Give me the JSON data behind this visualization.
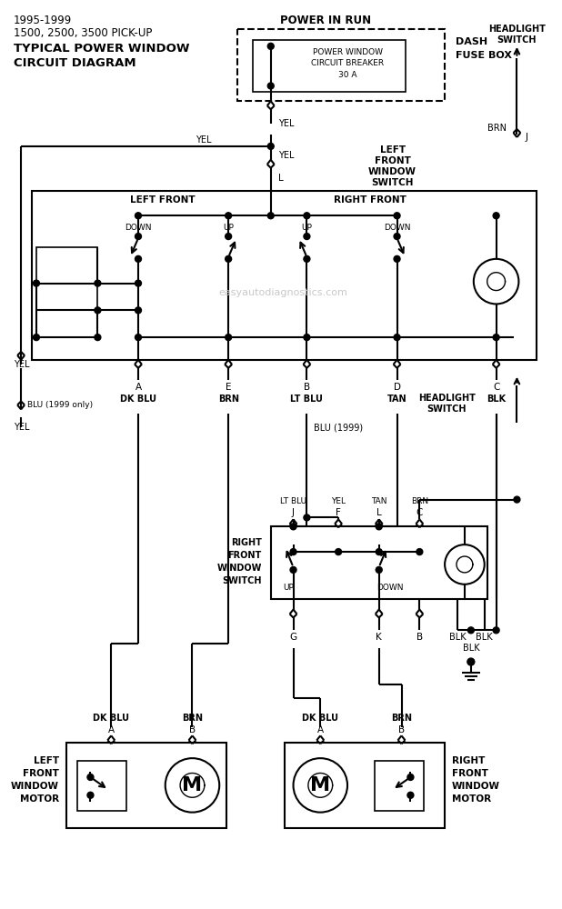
{
  "title_lines": [
    "1995-1999",
    "1500, 2500, 3500 PICK-UP",
    "TYPICAL POWER WINDOW",
    "CIRCUIT DIAGRAM"
  ],
  "watermark": "easyautodiagnostics.com",
  "bg_color": "#ffffff",
  "line_color": "#000000",
  "text_color": "#000000",
  "figsize": [
    6.18,
    10.0
  ],
  "dpi": 100
}
